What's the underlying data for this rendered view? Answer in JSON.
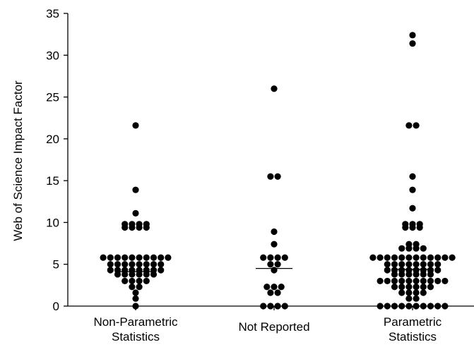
{
  "chart_data": {
    "type": "scatter",
    "ylabel": "Web of Science Impact Factor",
    "ylim": [
      0,
      35
    ],
    "yticks": [
      0,
      5,
      10,
      15,
      20,
      25,
      30,
      35
    ],
    "grid": false,
    "categories": [
      {
        "lines": [
          "Non-Parametric",
          "Statistics"
        ]
      },
      {
        "lines": [
          "Not Reported"
        ]
      },
      {
        "lines": [
          "Parametric",
          "Statistics"
        ]
      }
    ],
    "series": [
      {
        "median": 4.1,
        "points": [
          {
            "y": 21.6,
            "n": 1
          },
          {
            "y": 13.9,
            "n": 1
          },
          {
            "y": 11.1,
            "n": 1
          },
          {
            "y": 9.8,
            "n": 4
          },
          {
            "y": 9.4,
            "n": 4
          },
          {
            "y": 5.8,
            "n": 10
          },
          {
            "y": 5.0,
            "n": 8
          },
          {
            "y": 4.3,
            "n": 8
          },
          {
            "y": 3.8,
            "n": 6
          },
          {
            "y": 3.0,
            "n": 4
          },
          {
            "y": 2.3,
            "n": 2
          },
          {
            "y": 1.6,
            "n": 1
          },
          {
            "y": 0.9,
            "n": 1
          },
          {
            "y": 0.0,
            "n": 1
          }
        ]
      },
      {
        "median": 4.5,
        "points": [
          {
            "y": 26.0,
            "n": 1
          },
          {
            "y": 15.5,
            "n": 2
          },
          {
            "y": 8.9,
            "n": 1
          },
          {
            "y": 7.4,
            "n": 1
          },
          {
            "y": 5.8,
            "n": 4
          },
          {
            "y": 5.0,
            "n": 2
          },
          {
            "y": 4.3,
            "n": 1
          },
          {
            "y": 2.3,
            "n": 3
          },
          {
            "y": 1.6,
            "n": 2
          },
          {
            "y": 0.0,
            "n": 4
          }
        ]
      },
      {
        "median": 4.4,
        "points": [
          {
            "y": 32.4,
            "n": 1
          },
          {
            "y": 31.4,
            "n": 1
          },
          {
            "y": 21.6,
            "n": 2
          },
          {
            "y": 15.5,
            "n": 1
          },
          {
            "y": 13.9,
            "n": 1
          },
          {
            "y": 11.7,
            "n": 1
          },
          {
            "y": 9.8,
            "n": 3
          },
          {
            "y": 9.4,
            "n": 3
          },
          {
            "y": 7.4,
            "n": 2
          },
          {
            "y": 6.9,
            "n": 4
          },
          {
            "y": 5.8,
            "n": 12
          },
          {
            "y": 5.0,
            "n": 8
          },
          {
            "y": 4.3,
            "n": 8
          },
          {
            "y": 3.8,
            "n": 6
          },
          {
            "y": 3.0,
            "n": 10
          },
          {
            "y": 2.3,
            "n": 6
          },
          {
            "y": 1.6,
            "n": 4
          },
          {
            "y": 0.9,
            "n": 2
          },
          {
            "y": 0.0,
            "n": 10
          }
        ]
      }
    ]
  }
}
